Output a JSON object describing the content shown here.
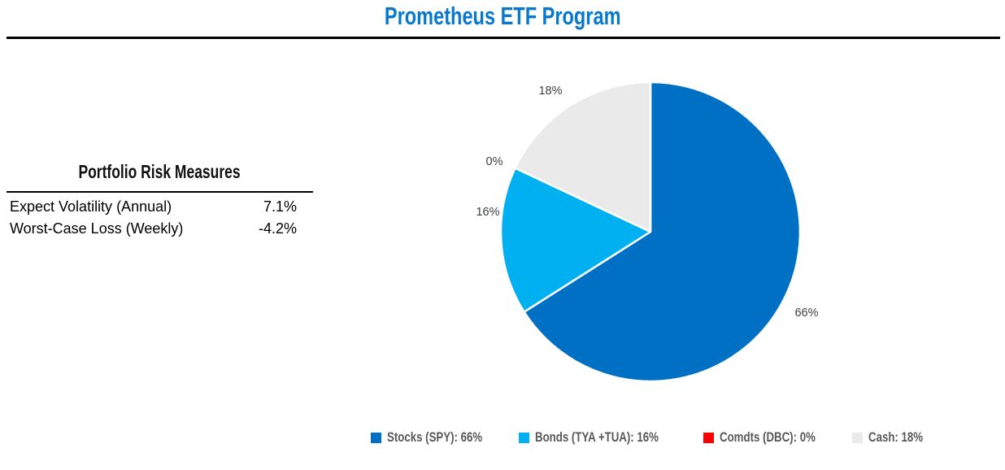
{
  "page": {
    "title": "Prometheus ETF Program"
  },
  "colors": {
    "title_text": "#0778CE",
    "divider": "#000000",
    "pie_label_text": "#3F3F3F",
    "legend_text": "#595959"
  },
  "risk_table": {
    "title": "Portfolio Risk Measures",
    "rows": [
      {
        "label": "Expect Volatility (Annual)",
        "value": "7.1%"
      },
      {
        "label": "Worst-Case Loss (Weekly)",
        "value": "-4.2%"
      }
    ]
  },
  "chart_data": {
    "type": "pie",
    "title": "Prometheus ETF Program",
    "start_angle_deg": 0,
    "direction": "clockwise",
    "legend_position": "bottom",
    "slices": [
      {
        "name": "Stocks (SPY)",
        "value": 66,
        "label": "66%",
        "color": "#0070C5",
        "legend": "Stocks (SPY): 66%"
      },
      {
        "name": "Bonds (TYA +TUA)",
        "value": 16,
        "label": "16%",
        "color": "#00B0F0",
        "legend": "Bonds (TYA +TUA): 16%"
      },
      {
        "name": "Comdts (DBC)",
        "value": 0,
        "label": "0%",
        "color": "#FF0000",
        "legend": "Comdts (DBC): 0%"
      },
      {
        "name": "Cash",
        "value": 18,
        "label": "18%",
        "color": "#EAEAEA",
        "legend": "Cash: 18%"
      }
    ]
  }
}
